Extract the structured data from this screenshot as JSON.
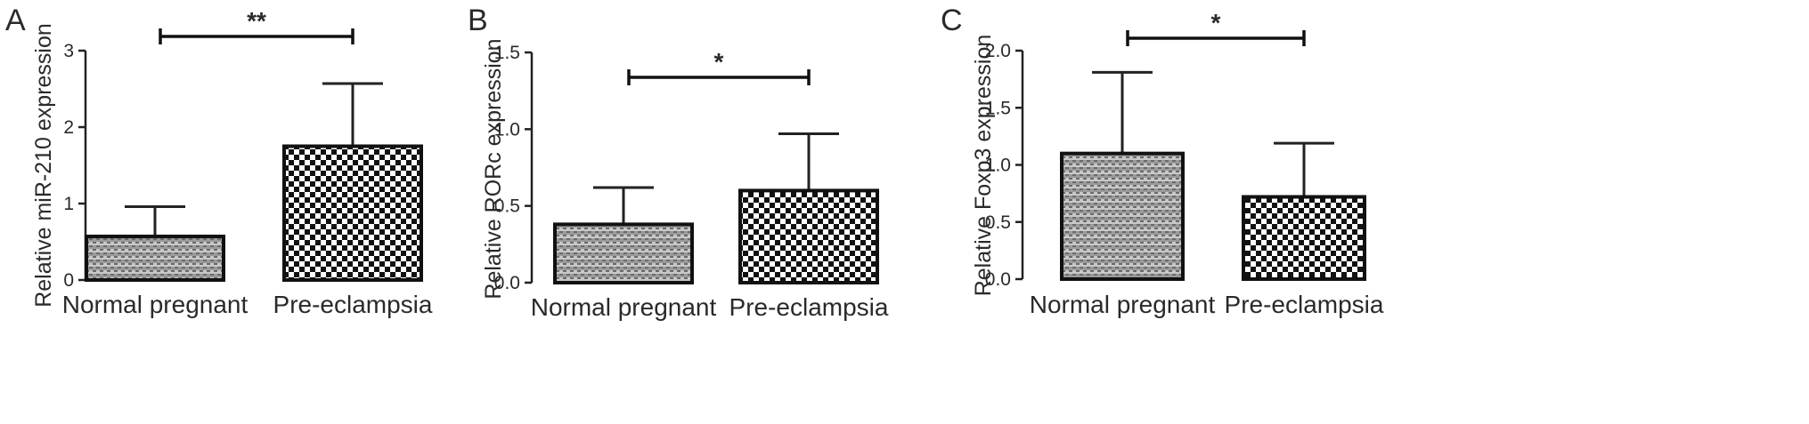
{
  "chart_data": [
    {
      "type": "bar",
      "panel": "A",
      "categories": [
        "Normal pregnant",
        "Pre-eclampsia"
      ],
      "values": [
        0.57,
        1.75
      ],
      "errors": [
        0.39,
        0.82
      ],
      "ylabel": "Relative miR-210 expression",
      "ylim": [
        0,
        3
      ],
      "yticks": [
        "0",
        "1",
        "2",
        "3"
      ],
      "significance": "**",
      "bar_patterns": [
        "stripe",
        "checker"
      ]
    },
    {
      "type": "bar",
      "panel": "B",
      "categories": [
        "Normal pregnant",
        "Pre-eclampsia"
      ],
      "values": [
        0.38,
        0.6
      ],
      "errors": [
        0.24,
        0.37
      ],
      "ylabel": "Relative RORc expression",
      "ylim": [
        0,
        1.5
      ],
      "yticks": [
        "0.0",
        "0.5",
        "1.0",
        "1.5"
      ],
      "significance": "*",
      "bar_patterns": [
        "stripe",
        "checker"
      ]
    },
    {
      "type": "bar",
      "panel": "C",
      "categories": [
        "Normal pregnant",
        "Pre-eclampsia"
      ],
      "values": [
        1.1,
        0.72
      ],
      "errors": [
        0.71,
        0.47
      ],
      "ylabel": "Relative Foxp3 expression",
      "ylim": [
        0,
        2
      ],
      "yticks": [
        "0.0",
        "0.5",
        "1.0",
        "1.5",
        "2.0"
      ],
      "significance": "*",
      "bar_patterns": [
        "stripe",
        "checker"
      ]
    }
  ]
}
